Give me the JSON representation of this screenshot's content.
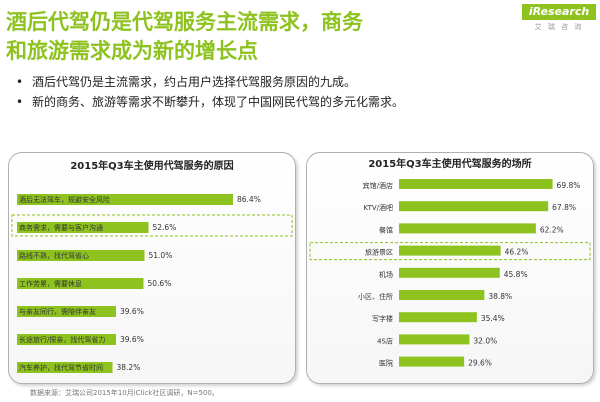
{
  "header": {
    "title_line1": "酒后代驾仍是代驾服务主流需求，商务",
    "title_line2": "和旅游需求成为新的增长点"
  },
  "logo": {
    "brand": "iResearch",
    "sub": "艾 瑞 咨 询"
  },
  "bullets": [
    "酒后代驾仍是主流需求，约占用户选择代驾服务原因的九成。",
    "新的商务、旅游等需求不断攀升，体现了中国网民代驾的多元化需求。"
  ],
  "footer": {
    "source": "数据来源：艾瑞公司2015年10月iClick社区调研，N=500。"
  },
  "colors": {
    "accent": "#8dc21f",
    "bar": "#8dc21f",
    "highlight_border": "#8dc21f"
  },
  "chart_data": [
    {
      "type": "bar",
      "orientation": "horizontal",
      "title": "2015年Q3车主使用代驾服务的原因",
      "categories": [
        "酒后无法驾车，规避安全风险",
        "商务需求，需要与客户沟通",
        "路线不熟，找代驾省心",
        "工作劳累，需要休息",
        "与亲友同行，需陪伴亲友",
        "长途旅行/探亲，找代驾省力",
        "汽车养护，找代驾节省时间"
      ],
      "values": [
        86.4,
        52.6,
        51.0,
        50.6,
        39.6,
        39.6,
        38.2
      ],
      "value_labels": [
        "86.4%",
        "52.6%",
        "51.0%",
        "50.6%",
        "39.6%",
        "39.6%",
        "38.2%"
      ],
      "xlim": [
        0,
        100
      ],
      "highlight_index": 1,
      "legend": "none",
      "grid": false
    },
    {
      "type": "bar",
      "orientation": "horizontal",
      "title": "2015年Q3车主使用代驾服务的场所",
      "categories": [
        "宾馆/酒店",
        "KTV/酒吧",
        "餐馆",
        "旅游景区",
        "机场",
        "小区、住所",
        "写字楼",
        "4S店",
        "医院"
      ],
      "values": [
        69.8,
        67.8,
        62.2,
        46.2,
        45.8,
        38.8,
        35.4,
        32.0,
        29.6
      ],
      "value_labels": [
        "69.8%",
        "67.8%",
        "62.2%",
        "46.2%",
        "45.8%",
        "38.8%",
        "35.4%",
        "32.0%",
        "29.6%"
      ],
      "xlim": [
        0,
        100
      ],
      "highlight_index": 3,
      "legend": "none",
      "grid": false
    }
  ]
}
